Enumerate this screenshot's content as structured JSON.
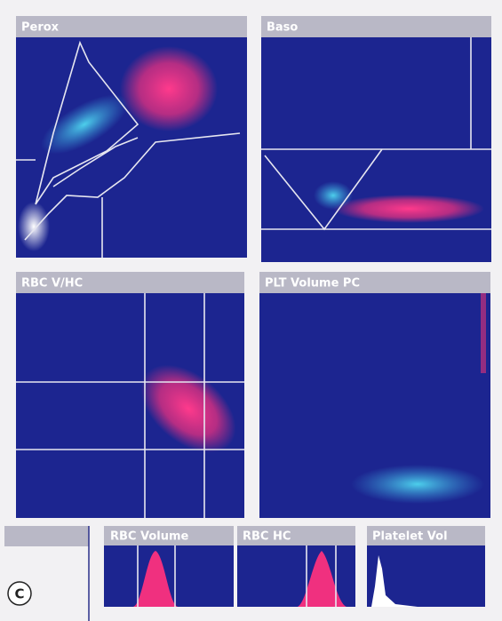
{
  "panels": [
    {
      "title": "Perox"
    },
    {
      "title": "Baso"
    },
    {
      "title": "RBC V/HC"
    },
    {
      "title": "PLT Volume PC"
    },
    {
      "title": "RBC Volume"
    },
    {
      "title": "RBC HC"
    },
    {
      "title": "Platelet Vol"
    }
  ],
  "label": "C"
}
